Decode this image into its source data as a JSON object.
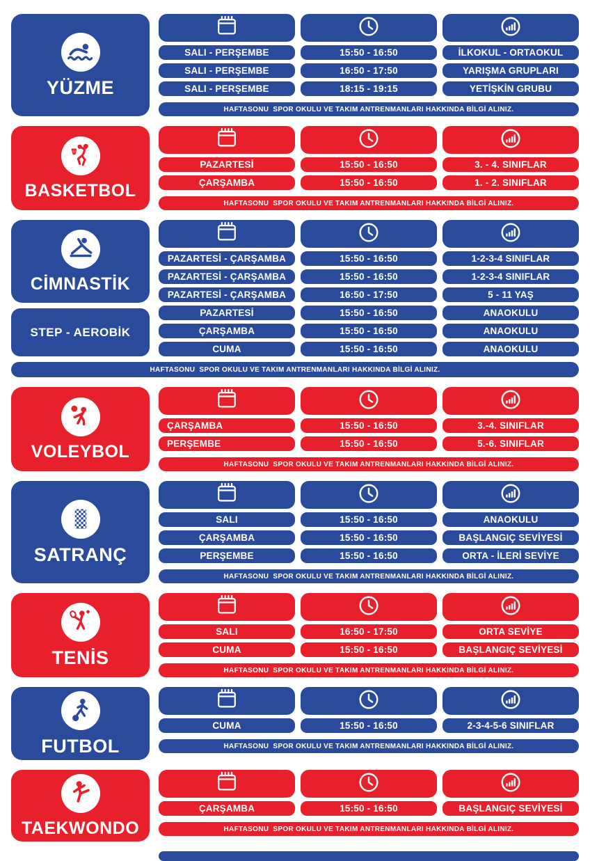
{
  "colors": {
    "blue": "#2a4a9b",
    "red": "#e8202b",
    "text": "#ffffff"
  },
  "footer_note": "HAFTASONU  SPOR OKULU VE TAKIM ANTRENMANLARI HAKKINDA BİLGİ ALINIZ.",
  "column_headers": [
    {
      "label": "days-column",
      "icon": "calendar-icon"
    },
    {
      "label": "time-column",
      "icon": "clock-icon"
    },
    {
      "label": "group-level-column",
      "icon": "level-icon"
    }
  ],
  "sections": [
    {
      "id": "yuzme",
      "title": "YÜZME",
      "color": "blue",
      "icon": "swimmer-icon",
      "rows": [
        {
          "day": "SALI - PERŞEMBE",
          "time": "15:50 - 16:50",
          "group": "İLKOKUL - ORTAOKUL"
        },
        {
          "day": "SALI - PERŞEMBE",
          "time": "16:50 - 17:50",
          "group": "YARIŞMA GRUPLARI"
        },
        {
          "day": "SALI - PERŞEMBE",
          "time": "18:15 - 19:15",
          "group": "YETİŞKİN GRUBU"
        }
      ],
      "footer_full_width": false
    },
    {
      "id": "basketbol",
      "title": "BASKETBOL",
      "color": "red",
      "icon": "basketball-icon",
      "rows": [
        {
          "day": "PAZARTESİ",
          "time": "15:50 - 16:50",
          "group": "3. - 4. SINIFLAR"
        },
        {
          "day": "ÇARŞAMBA",
          "time": "15:50 - 16:50",
          "group": "1. - 2. SINIFLAR"
        }
      ],
      "footer_full_width": false
    },
    {
      "id": "cimnastik",
      "title": "CİMNASTİK",
      "color": "blue",
      "icon": "gymnast-icon",
      "subtitle_card": "STEP - AEROBİK",
      "rows": [
        {
          "day": "PAZARTESİ - ÇARŞAMBA",
          "time": "15:50 - 16:50",
          "group": "1-2-3-4 SINIFLAR"
        },
        {
          "day": "PAZARTESİ - ÇARŞAMBA",
          "time": "15:50 - 16:50",
          "group": "1-2-3-4 SINIFLAR"
        },
        {
          "day": "PAZARTESİ - ÇARŞAMBA",
          "time": "16:50 - 17:50",
          "group": "5 - 11 YAŞ"
        },
        {
          "day": "PAZARTESİ",
          "time": "15:50 - 16:50",
          "group": "ANAOKULU"
        },
        {
          "day": "ÇARŞAMBA",
          "time": "15:50 - 16:50",
          "group": "ANAOKULU"
        },
        {
          "day": "CUMA",
          "time": "15:50 - 16:50",
          "group": "ANAOKULU"
        }
      ],
      "footer_full_width": true
    },
    {
      "id": "voleybol",
      "title": "VOLEYBOL",
      "color": "red",
      "icon": "volleyball-icon",
      "day_align": "left",
      "rows": [
        {
          "day": "ÇARŞAMBA",
          "time": "15:50 - 16:50",
          "group": "3.-4. SINIFLAR"
        },
        {
          "day": "PERŞEMBE",
          "time": "15:50 - 16:50",
          "group": "5.-6. SINIFLAR"
        }
      ],
      "footer_full_width": false
    },
    {
      "id": "satranc",
      "title": "SATRANÇ",
      "color": "blue",
      "icon": "chess-icon",
      "rows": [
        {
          "day": "SALI",
          "time": "15:50 - 16:50",
          "group": "ANAOKULU"
        },
        {
          "day": "ÇARŞAMBA",
          "time": "15:50 - 16:50",
          "group": "BAŞLANGIÇ SEVİYESİ"
        },
        {
          "day": "PERŞEMBE",
          "time": "15:50 - 16:50",
          "group": "ORTA - İLERİ SEVİYE"
        }
      ],
      "footer_full_width": false
    },
    {
      "id": "tenis",
      "title": "TENİS",
      "color": "red",
      "icon": "tennis-icon",
      "rows": [
        {
          "day": "SALI",
          "time": "16:50 - 17:50",
          "group": "ORTA SEVİYE"
        },
        {
          "day": "CUMA",
          "time": "15:50 - 16:50",
          "group": "BAŞLANGIÇ SEVİYESİ"
        }
      ],
      "footer_full_width": false
    },
    {
      "id": "futbol",
      "title": "FUTBOL",
      "color": "blue",
      "icon": "football-icon",
      "rows": [
        {
          "day": "CUMA",
          "time": "15:50 - 16:50",
          "group": "2-3-4-5-6 SINIFLAR"
        }
      ],
      "footer_full_width": false
    },
    {
      "id": "taekwondo",
      "title": "TAEKWONDO",
      "color": "red",
      "icon": "taekwondo-icon",
      "rows": [
        {
          "day": "ÇARŞAMBA",
          "time": "15:50 - 16:50",
          "group": "BAŞLANGIÇ SEVİYESİ"
        }
      ],
      "footer_full_width": false
    }
  ],
  "bottom_strip": {
    "color": "blue"
  }
}
